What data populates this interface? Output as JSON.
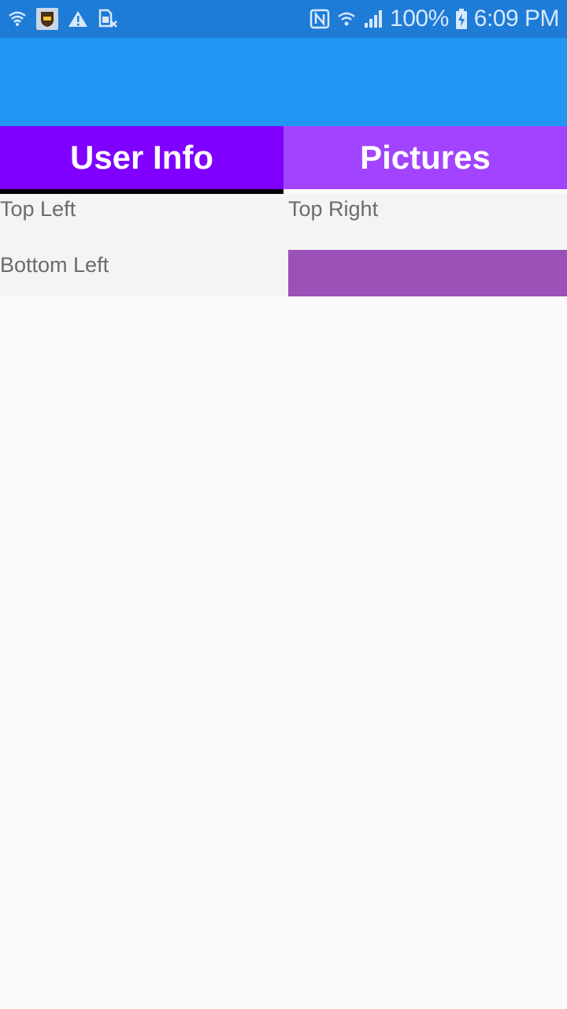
{
  "status_bar": {
    "battery": "100%",
    "time": "6:09 PM",
    "icons_left": [
      "wifi-shield-icon",
      "ups-app-icon",
      "warning-icon",
      "sim-off-icon"
    ],
    "icons_right": [
      "nfc-icon",
      "wifi-icon",
      "signal-icon",
      "battery-charging-icon"
    ]
  },
  "tabs": [
    {
      "label": "User Info",
      "selected": true
    },
    {
      "label": "Pictures",
      "selected": false
    }
  ],
  "grid": {
    "top_left": "Top Left",
    "top_right": "Top Right",
    "bottom_left": "Bottom Left",
    "bottom_right_color": "#9c51b8"
  },
  "colors": {
    "status_bar": "#1e7bd6",
    "app_bar": "#2196f3",
    "tab_selected": "#7f00ff",
    "tab_unselected": "#a244ff",
    "indicator": "#000000"
  }
}
